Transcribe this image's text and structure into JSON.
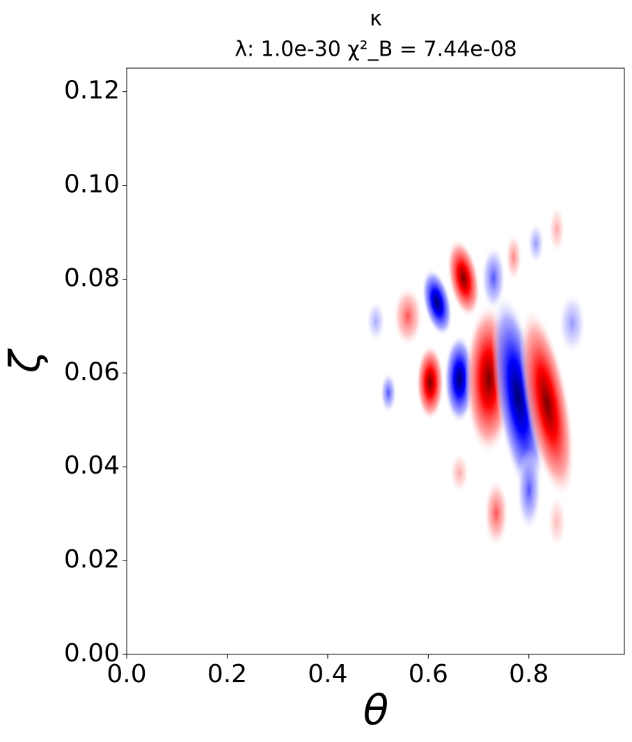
{
  "chart_data": {
    "type": "contour",
    "title": "κ",
    "subtitle": "λ: 1.0e-30 χ²_B = 7.44e-08",
    "xlabel": "θ",
    "ylabel": "ζ",
    "colormap": "bwr",
    "xlim": [
      0,
      0.99
    ],
    "ylim": [
      0,
      0.125
    ],
    "xticks": [
      {
        "value": 0,
        "label": "0.0"
      },
      0.2,
      0.4,
      0.6,
      0.8
    ],
    "yticks": [
      {
        "value": 0,
        "label": "0.00"
      },
      {
        "value": 0.02,
        "label": "0.02"
      },
      {
        "value": 0.04,
        "label": "0.04"
      },
      {
        "value": 0.06,
        "label": "0.06"
      },
      {
        "value": 0.08,
        "label": "0.08"
      },
      {
        "value": 0.1,
        "label": "0.10"
      },
      {
        "value": 0.12,
        "label": "0.12"
      }
    ]
  }
}
